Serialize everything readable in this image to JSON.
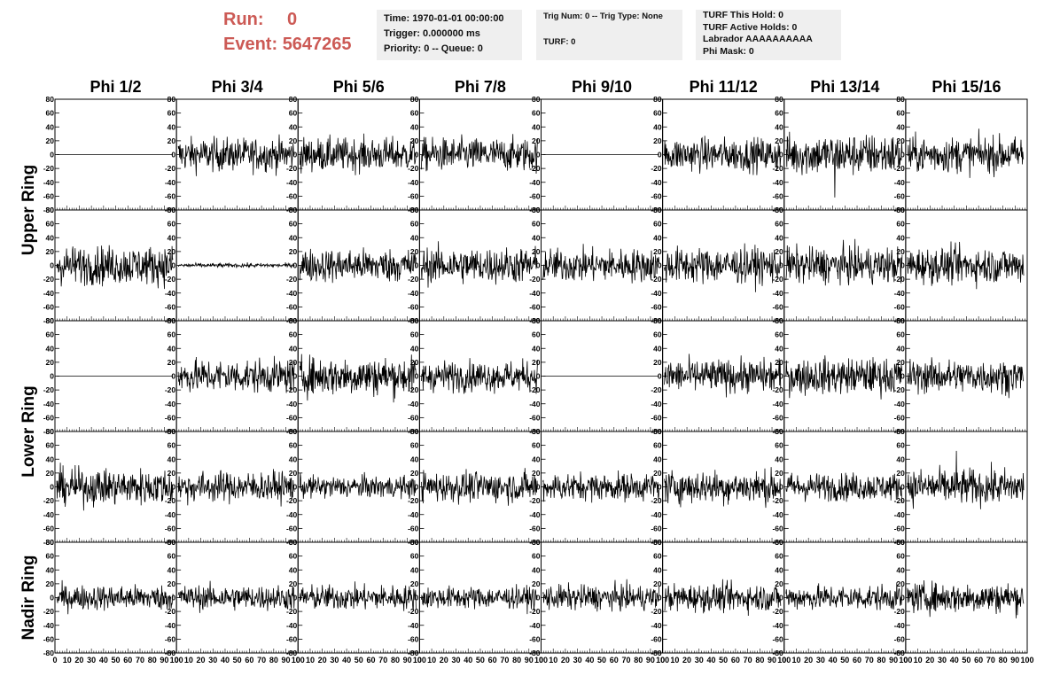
{
  "header": {
    "run_label": "Run:",
    "run_value": "0",
    "event_label": "Event:",
    "event_value": "5647265"
  },
  "info_time": {
    "line1": "Time: 1970-01-01 00:00:00",
    "line2": "Trigger: 0.000000 ms",
    "line3": "Priority: 0 -- Queue: 0"
  },
  "info_trig": {
    "line1": "Trig Num: 0 -- Trig Type: None",
    "line2": "TURF: 0"
  },
  "info_turf": {
    "line1": "TURF This Hold: 0",
    "line2": "TURF Active Holds: 0",
    "line3": "Labrador AAAAAAAAAA",
    "line4": "Phi Mask: 0"
  },
  "chart_data": {
    "type": "line",
    "columns": [
      "Phi 1/2",
      "Phi 3/4",
      "Phi 5/6",
      "Phi 7/8",
      "Phi 9/10",
      "Phi 11/12",
      "Phi 13/14",
      "Phi 15/16"
    ],
    "ring_labels": [
      "Upper Ring",
      "Lower Ring",
      "Nadir Ring"
    ],
    "rows_per_ring": [
      2,
      2,
      1
    ],
    "xlim": [
      0,
      100
    ],
    "ylim": [
      -80,
      80
    ],
    "xticks": [
      0,
      10,
      20,
      30,
      40,
      50,
      60,
      70,
      80,
      90,
      100
    ],
    "yticks": [
      -80,
      -60,
      -40,
      -20,
      0,
      20,
      40,
      60,
      80
    ],
    "samples_per_trace": 260,
    "amplitude": [
      [
        0,
        12,
        12,
        12,
        0,
        12,
        15,
        13
      ],
      [
        14,
        1.5,
        12,
        13,
        12,
        13,
        13,
        13
      ],
      [
        0,
        12,
        14,
        11,
        0,
        12,
        13,
        12
      ],
      [
        13,
        11,
        8,
        11,
        10,
        12,
        10,
        13
      ],
      [
        9,
        9,
        9,
        8,
        9,
        10,
        9,
        11
      ]
    ],
    "peaks": [
      [
        0,
        0,
        0,
        0,
        0,
        0,
        -62,
        0
      ],
      [
        0,
        0,
        0,
        0,
        0,
        0,
        0,
        0
      ],
      [
        0,
        0,
        0,
        0,
        0,
        0,
        0,
        0
      ],
      [
        0,
        0,
        0,
        0,
        0,
        0,
        0,
        52
      ],
      [
        0,
        0,
        0,
        0,
        0,
        0,
        0,
        0
      ]
    ],
    "line_color": "#000000"
  }
}
